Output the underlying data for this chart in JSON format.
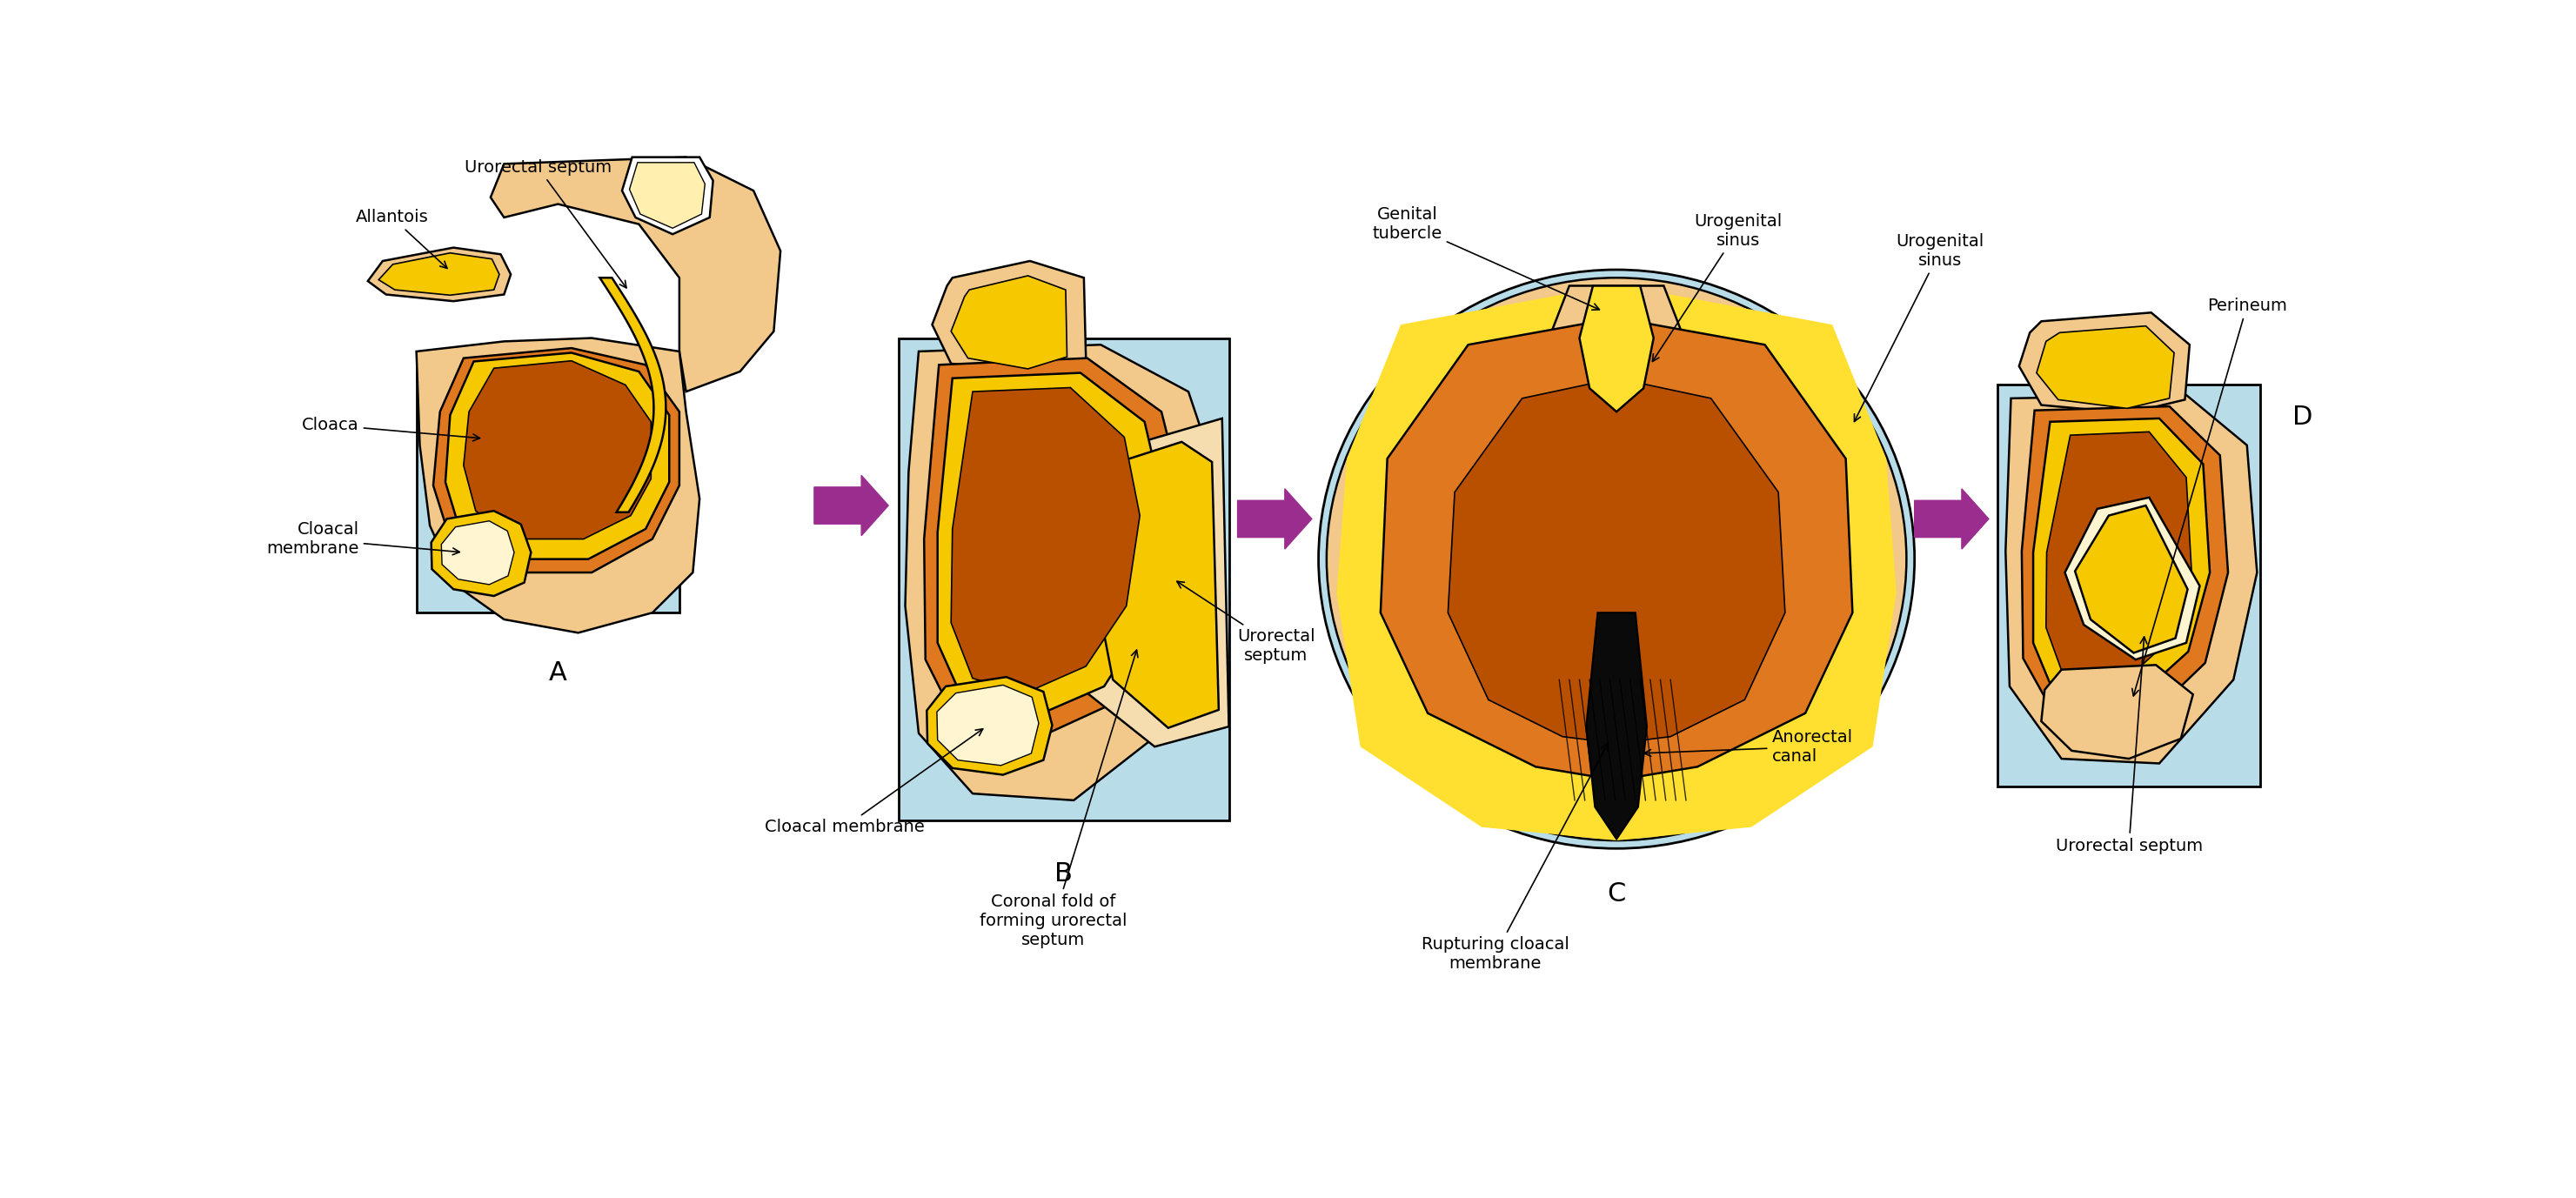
{
  "fig_width": 29.61,
  "fig_height": 13.77,
  "bg_color": "#ffffff",
  "light_blue": "#b8dce8",
  "peach": "#f2c98a",
  "peach_light": "#f5ddb0",
  "orange": "#e07820",
  "dark_orange": "#b85000",
  "yellow": "#f5c800",
  "bright_yellow": "#ffe030",
  "cream": "#fff5d0",
  "light_cream": "#fff0b0",
  "arrow_color": "#9b2d8e",
  "line_color": "#000000",
  "labels": {
    "allantois": "Allantois",
    "urorectal_septum": "Urorectal septum",
    "cloaca": "Cloaca",
    "cloacal_membrane": "Cloacal\nmembrane",
    "cloacal_membrane_B": "Cloacal membrane",
    "coronal_fold": "Coronal fold of\nforming urorectal\nseptum",
    "urorectal_septum_B": "Urorectal\nseptum",
    "genital_tubercle": "Genital\ntubercle",
    "urogenital_sinus_C": "Urogenital\nsinus",
    "urogenital_sinus_D": "Urogenital\nsinus",
    "anorectal_canal": "Anorectal\ncanal",
    "rupturing": "Rupturing cloacal\nmembrane",
    "perineum": "Perineum",
    "urorectal_septum_D": "Urorectal septum"
  },
  "font_size": 14,
  "label_font_size": 20
}
